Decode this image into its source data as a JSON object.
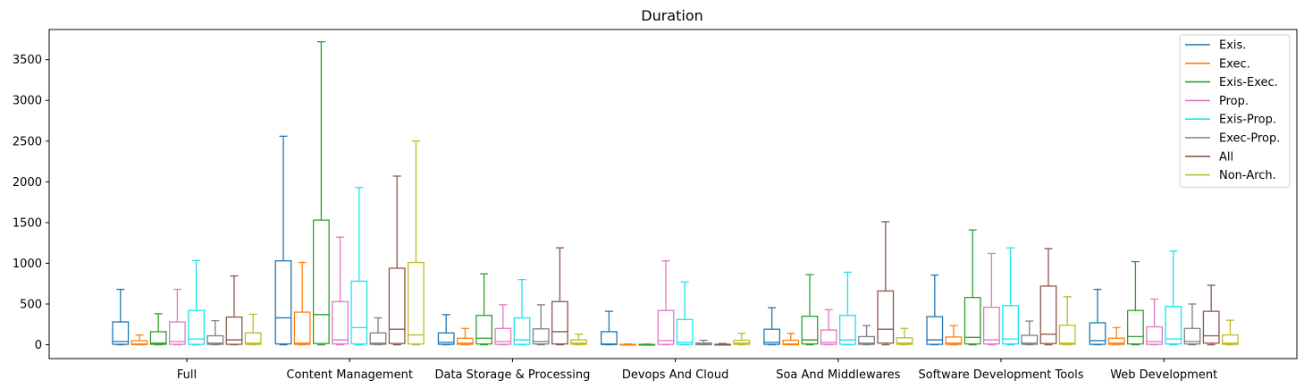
{
  "chart_data": {
    "type": "box",
    "title": "Duration",
    "xlabel": "",
    "ylabel": "",
    "ylim": [
      -170,
      3870
    ],
    "yticks": [
      0,
      500,
      1000,
      1500,
      2000,
      2500,
      3000,
      3500
    ],
    "grid": false,
    "legend_position": "top-right",
    "showfliers": false,
    "categories": [
      "Full",
      "Content Management",
      "Data Storage & Processing",
      "Devops And Cloud",
      "Soa And Middlewares",
      "Software Development Tools",
      "Web Development"
    ],
    "series": [
      {
        "name": "Exis.",
        "color": "#1f77b4",
        "boxes": [
          {
            "whislo": 0,
            "q1": 5,
            "med": 40,
            "q3": 280,
            "whishi": 680
          },
          {
            "whislo": 0,
            "q1": 10,
            "med": 330,
            "q3": 1030,
            "whishi": 2560
          },
          {
            "whislo": 0,
            "q1": 5,
            "med": 30,
            "q3": 145,
            "whishi": 370
          },
          {
            "whislo": 0,
            "q1": 3,
            "med": 10,
            "q3": 160,
            "whishi": 410
          },
          {
            "whislo": 0,
            "q1": 5,
            "med": 30,
            "q3": 190,
            "whishi": 455
          },
          {
            "whislo": 0,
            "q1": 5,
            "med": 60,
            "q3": 345,
            "whishi": 855
          },
          {
            "whislo": 0,
            "q1": 5,
            "med": 50,
            "q3": 270,
            "whishi": 680
          }
        ]
      },
      {
        "name": "Exec.",
        "color": "#ff7f0e",
        "boxes": [
          {
            "whislo": 0,
            "q1": 2,
            "med": 10,
            "q3": 50,
            "whishi": 120
          },
          {
            "whislo": 0,
            "q1": 5,
            "med": 20,
            "q3": 400,
            "whishi": 1010
          },
          {
            "whislo": 0,
            "q1": 5,
            "med": 20,
            "q3": 80,
            "whishi": 200
          },
          {
            "whislo": 0,
            "q1": 1,
            "med": 2,
            "q3": 5,
            "whishi": 10
          },
          {
            "whislo": 0,
            "q1": 2,
            "med": 10,
            "q3": 55,
            "whishi": 140
          },
          {
            "whislo": 0,
            "q1": 5,
            "med": 20,
            "q3": 95,
            "whishi": 235
          },
          {
            "whislo": 0,
            "q1": 5,
            "med": 20,
            "q3": 80,
            "whishi": 210
          }
        ]
      },
      {
        "name": "Exis-Exec.",
        "color": "#2ca02c",
        "boxes": [
          {
            "whislo": 0,
            "q1": 5,
            "med": 20,
            "q3": 160,
            "whishi": 380
          },
          {
            "whislo": 0,
            "q1": 15,
            "med": 370,
            "q3": 1530,
            "whishi": 3720
          },
          {
            "whislo": 0,
            "q1": 10,
            "med": 80,
            "q3": 360,
            "whishi": 870
          },
          {
            "whislo": 0,
            "q1": 1,
            "med": 2,
            "q3": 4,
            "whishi": 8
          },
          {
            "whislo": 0,
            "q1": 10,
            "med": 60,
            "q3": 350,
            "whishi": 860
          },
          {
            "whislo": 0,
            "q1": 10,
            "med": 90,
            "q3": 580,
            "whishi": 1410
          },
          {
            "whislo": 0,
            "q1": 10,
            "med": 100,
            "q3": 420,
            "whishi": 1020
          }
        ]
      },
      {
        "name": "Prop.",
        "color": "#e377c2",
        "boxes": [
          {
            "whislo": 0,
            "q1": 5,
            "med": 40,
            "q3": 280,
            "whishi": 680
          },
          {
            "whislo": 0,
            "q1": 10,
            "med": 60,
            "q3": 530,
            "whishi": 1320
          },
          {
            "whislo": 0,
            "q1": 5,
            "med": 40,
            "q3": 200,
            "whishi": 490
          },
          {
            "whislo": 0,
            "q1": 5,
            "med": 50,
            "q3": 420,
            "whishi": 1030
          },
          {
            "whislo": 0,
            "q1": 5,
            "med": 30,
            "q3": 180,
            "whishi": 430
          },
          {
            "whislo": 0,
            "q1": 10,
            "med": 60,
            "q3": 460,
            "whishi": 1120
          },
          {
            "whislo": 0,
            "q1": 5,
            "med": 40,
            "q3": 220,
            "whishi": 560
          }
        ]
      },
      {
        "name": "Exis-Prop.",
        "color": "#17e5ef",
        "boxes": [
          {
            "whislo": 0,
            "q1": 5,
            "med": 70,
            "q3": 420,
            "whishi": 1035
          },
          {
            "whislo": 0,
            "q1": 10,
            "med": 210,
            "q3": 780,
            "whishi": 1930
          },
          {
            "whislo": 0,
            "q1": 5,
            "med": 60,
            "q3": 330,
            "whishi": 800
          },
          {
            "whislo": 0,
            "q1": 5,
            "med": 30,
            "q3": 310,
            "whishi": 770
          },
          {
            "whislo": 0,
            "q1": 5,
            "med": 60,
            "q3": 360,
            "whishi": 890
          },
          {
            "whislo": 0,
            "q1": 10,
            "med": 70,
            "q3": 480,
            "whishi": 1190
          },
          {
            "whislo": 0,
            "q1": 10,
            "med": 70,
            "q3": 470,
            "whishi": 1150
          }
        ]
      },
      {
        "name": "Exec-Prop.",
        "color": "#7f7f7f",
        "boxes": [
          {
            "whislo": 0,
            "q1": 5,
            "med": 20,
            "q3": 110,
            "whishi": 295
          },
          {
            "whislo": 0,
            "q1": 5,
            "med": 20,
            "q3": 145,
            "whishi": 330
          },
          {
            "whislo": 0,
            "q1": 10,
            "med": 40,
            "q3": 195,
            "whishi": 490
          },
          {
            "whislo": 0,
            "q1": 1,
            "med": 5,
            "q3": 20,
            "whishi": 55
          },
          {
            "whislo": 0,
            "q1": 5,
            "med": 20,
            "q3": 100,
            "whishi": 235
          },
          {
            "whislo": 0,
            "q1": 5,
            "med": 20,
            "q3": 115,
            "whishi": 290
          },
          {
            "whislo": 0,
            "q1": 10,
            "med": 40,
            "q3": 200,
            "whishi": 500
          }
        ]
      },
      {
        "name": "All",
        "color": "#8c564b",
        "boxes": [
          {
            "whislo": 0,
            "q1": 5,
            "med": 60,
            "q3": 340,
            "whishi": 845
          },
          {
            "whislo": 0,
            "q1": 15,
            "med": 190,
            "q3": 940,
            "whishi": 2070
          },
          {
            "whislo": 0,
            "q1": 10,
            "med": 160,
            "q3": 530,
            "whishi": 1190
          },
          {
            "whislo": 0,
            "q1": 1,
            "med": 2,
            "q3": 5,
            "whishi": 15
          },
          {
            "whislo": 0,
            "q1": 20,
            "med": 190,
            "q3": 660,
            "whishi": 1510
          },
          {
            "whislo": 0,
            "q1": 15,
            "med": 130,
            "q3": 720,
            "whishi": 1180
          },
          {
            "whislo": 0,
            "q1": 20,
            "med": 110,
            "q3": 410,
            "whishi": 730
          }
        ]
      },
      {
        "name": "Non-Arch.",
        "color": "#bcbd22",
        "boxes": [
          {
            "whislo": 0,
            "q1": 5,
            "med": 20,
            "q3": 145,
            "whishi": 375
          },
          {
            "whislo": 0,
            "q1": 10,
            "med": 120,
            "q3": 1010,
            "whishi": 2500
          },
          {
            "whislo": 0,
            "q1": 5,
            "med": 20,
            "q3": 60,
            "whishi": 130
          },
          {
            "whislo": 0,
            "q1": 5,
            "med": 20,
            "q3": 55,
            "whishi": 140
          },
          {
            "whislo": 0,
            "q1": 5,
            "med": 20,
            "q3": 85,
            "whishi": 200
          },
          {
            "whislo": 0,
            "q1": 5,
            "med": 20,
            "q3": 240,
            "whishi": 590
          },
          {
            "whislo": 0,
            "q1": 5,
            "med": 20,
            "q3": 120,
            "whishi": 300
          }
        ]
      }
    ]
  }
}
